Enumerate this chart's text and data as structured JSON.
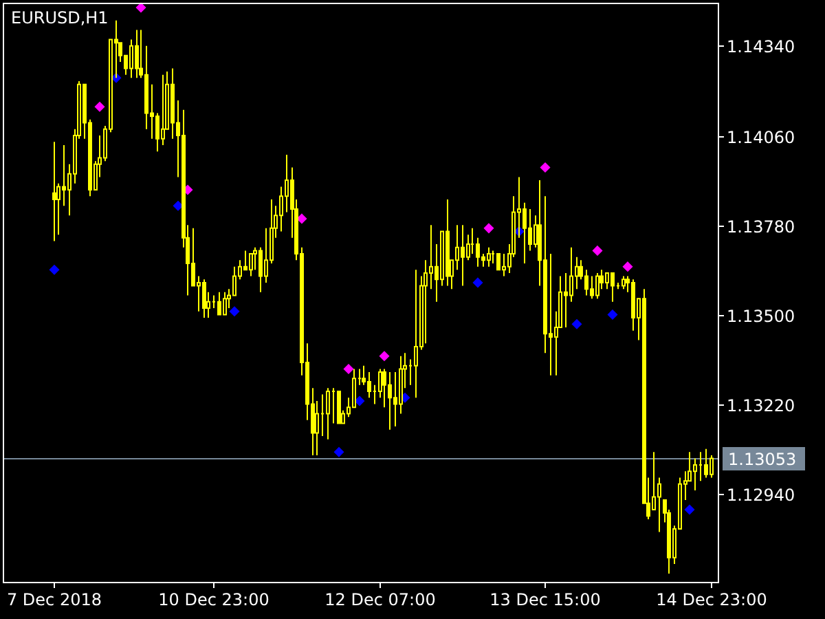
{
  "chart_data": {
    "type": "candlestick",
    "title": "EURUSD,H1",
    "color": "#ffff00",
    "marker": "diamond",
    "categories": [
      "7 Dec 2018",
      null,
      null,
      null,
      null,
      null,
      null,
      null,
      null,
      null,
      null,
      null,
      null,
      null,
      null,
      null,
      null,
      null,
      null,
      null,
      null,
      null,
      null,
      null,
      null,
      null,
      null,
      null,
      null,
      null,
      null,
      "10 Dec 23:00",
      null,
      null,
      null,
      null,
      null,
      null,
      null,
      null,
      null,
      null,
      null,
      null,
      null,
      null,
      null,
      null,
      null,
      null,
      null,
      null,
      null,
      null,
      null,
      null,
      null,
      null,
      null,
      null,
      null,
      null,
      null,
      "12 Dec 07:00",
      null,
      null,
      null,
      null,
      null,
      null,
      null,
      null,
      null,
      null,
      null,
      null,
      null,
      null,
      null,
      null,
      null,
      null,
      null,
      null,
      null,
      null,
      null,
      null,
      null,
      null,
      null,
      null,
      null,
      null,
      null,
      "13 Dec 15:00",
      null,
      null,
      null,
      null,
      null,
      null,
      null,
      null,
      null,
      null,
      null,
      null,
      null,
      null,
      null,
      null,
      null,
      null,
      null,
      null,
      null,
      null,
      null,
      null,
      null,
      null,
      null,
      null,
      null,
      null,
      null,
      "14 Dec 23:00"
    ],
    "ohlc": [
      [
        1.1388,
        1.1404,
        1.1373,
        1.1386
      ],
      [
        1.1386,
        1.1391,
        1.1375,
        1.139
      ],
      [
        1.139,
        1.1403,
        1.1384,
        1.1389
      ],
      [
        1.1389,
        1.1397,
        1.1381,
        1.1394
      ],
      [
        1.1394,
        1.1408,
        1.1391,
        1.1406
      ],
      [
        1.1406,
        1.1423,
        1.1405,
        1.1422
      ],
      [
        1.1422,
        1.1422,
        1.1405,
        1.141
      ],
      [
        1.141,
        1.1411,
        1.1387,
        1.1389
      ],
      [
        1.1389,
        1.1398,
        1.1389,
        1.1397
      ],
      [
        1.1397,
        1.1406,
        1.1393,
        1.1399
      ],
      [
        1.1399,
        1.1409,
        1.1398,
        1.1408
      ],
      [
        1.1408,
        1.1436,
        1.1407,
        1.1436
      ],
      [
        1.1436,
        1.1442,
        1.1424,
        1.1435
      ],
      [
        1.1435,
        1.1435,
        1.1429,
        1.1431
      ],
      [
        1.1431,
        1.1431,
        1.1425,
        1.1427
      ],
      [
        1.1427,
        1.1436,
        1.1424,
        1.1434
      ],
      [
        1.1434,
        1.1439,
        1.1424,
        1.1427
      ],
      [
        1.1427,
        1.1439,
        1.1424,
        1.1425
      ],
      [
        1.1425,
        1.1434,
        1.1408,
        1.1413
      ],
      [
        1.1413,
        1.1422,
        1.1405,
        1.1412
      ],
      [
        1.1412,
        1.1413,
        1.1401,
        1.1405
      ],
      [
        1.1405,
        1.1425,
        1.1403,
        1.1408
      ],
      [
        1.1408,
        1.1426,
        1.1408,
        1.1422
      ],
      [
        1.1422,
        1.1427,
        1.1405,
        1.141
      ],
      [
        1.141,
        1.1417,
        1.1393,
        1.1406
      ],
      [
        1.1406,
        1.1414,
        1.1371,
        1.1374
      ],
      [
        1.1374,
        1.1378,
        1.1356,
        1.1366
      ],
      [
        1.1366,
        1.1377,
        1.1359,
        1.1359
      ],
      [
        1.1359,
        1.1362,
        1.1351,
        1.136
      ],
      [
        1.136,
        1.1361,
        1.1349,
        1.1352
      ],
      [
        1.1352,
        1.1357,
        1.1349,
        1.1354
      ],
      [
        1.1354,
        1.1356,
        1.1352,
        1.1354
      ],
      [
        1.1354,
        1.1357,
        1.135,
        1.135
      ],
      [
        1.135,
        1.1357,
        1.135,
        1.1355
      ],
      [
        1.1355,
        1.1358,
        1.1352,
        1.1356
      ],
      [
        1.1356,
        1.1365,
        1.1356,
        1.1362
      ],
      [
        1.1362,
        1.1367,
        1.1361,
        1.1365
      ],
      [
        1.1365,
        1.137,
        1.1364,
        1.1364
      ],
      [
        1.1364,
        1.1369,
        1.1362,
        1.1369
      ],
      [
        1.1369,
        1.1371,
        1.1364,
        1.137
      ],
      [
        1.137,
        1.1371,
        1.1357,
        1.1362
      ],
      [
        1.1362,
        1.1377,
        1.136,
        1.1367
      ],
      [
        1.1367,
        1.1386,
        1.1366,
        1.1377
      ],
      [
        1.1377,
        1.1384,
        1.1374,
        1.1381
      ],
      [
        1.1381,
        1.139,
        1.1376,
        1.1387
      ],
      [
        1.1387,
        1.14,
        1.1382,
        1.1392
      ],
      [
        1.1392,
        1.1396,
        1.1374,
        1.1383
      ],
      [
        1.1383,
        1.1386,
        1.1367,
        1.1369
      ],
      [
        1.1369,
        1.1371,
        1.1331,
        1.1335
      ],
      [
        1.1335,
        1.1341,
        1.1317,
        1.1322
      ],
      [
        1.1322,
        1.1327,
        1.1306,
        1.1313
      ],
      [
        1.1313,
        1.1323,
        1.1306,
        1.1319
      ],
      [
        1.1319,
        1.1325,
        1.1312,
        1.1319
      ],
      [
        1.1319,
        1.1327,
        1.1311,
        1.1326
      ],
      [
        1.1326,
        1.1327,
        1.1316,
        1.1326
      ],
      [
        1.1326,
        1.1326,
        1.1316,
        1.1316
      ],
      [
        1.1316,
        1.132,
        1.1316,
        1.1319
      ],
      [
        1.1319,
        1.1324,
        1.1318,
        1.1321
      ],
      [
        1.1321,
        1.1333,
        1.1321,
        1.133
      ],
      [
        1.133,
        1.1333,
        1.1328,
        1.133
      ],
      [
        1.133,
        1.1334,
        1.1328,
        1.1329
      ],
      [
        1.1329,
        1.1332,
        1.1324,
        1.1326
      ],
      [
        1.1326,
        1.1328,
        1.1322,
        1.1326
      ],
      [
        1.1326,
        1.1333,
        1.1324,
        1.1332
      ],
      [
        1.1332,
        1.1333,
        1.1321,
        1.1328
      ],
      [
        1.1328,
        1.1332,
        1.1314,
        1.1324
      ],
      [
        1.1324,
        1.1332,
        1.1315,
        1.1322
      ],
      [
        1.1322,
        1.1337,
        1.1319,
        1.1333
      ],
      [
        1.1333,
        1.1338,
        1.1327,
        1.1334
      ],
      [
        1.1334,
        1.1336,
        1.1328,
        1.1334
      ],
      [
        1.1334,
        1.1364,
        1.1324,
        1.134
      ],
      [
        1.134,
        1.1362,
        1.1339,
        1.1359
      ],
      [
        1.1359,
        1.1367,
        1.1341,
        1.1363
      ],
      [
        1.1363,
        1.1378,
        1.1358,
        1.1365
      ],
      [
        1.1365,
        1.1372,
        1.1354,
        1.1361
      ],
      [
        1.1361,
        1.1376,
        1.1359,
        1.1376
      ],
      [
        1.1376,
        1.1386,
        1.1359,
        1.1362
      ],
      [
        1.1362,
        1.1367,
        1.1358,
        1.1367
      ],
      [
        1.1367,
        1.1378,
        1.1364,
        1.1371
      ],
      [
        1.1371,
        1.1378,
        1.1359,
        1.1368
      ],
      [
        1.1368,
        1.1375,
        1.1367,
        1.1372
      ],
      [
        1.1372,
        1.1377,
        1.1369,
        1.1372
      ],
      [
        1.1372,
        1.1374,
        1.1365,
        1.1368
      ],
      [
        1.1368,
        1.1369,
        1.1365,
        1.1367
      ],
      [
        1.1367,
        1.1371,
        1.1365,
        1.1369
      ],
      [
        1.1369,
        1.137,
        1.1366,
        1.1369
      ],
      [
        1.1369,
        1.1369,
        1.1364,
        1.1364
      ],
      [
        1.1364,
        1.1369,
        1.1362,
        1.1365
      ],
      [
        1.1365,
        1.1372,
        1.1363,
        1.1369
      ],
      [
        1.1369,
        1.1387,
        1.1368,
        1.1382
      ],
      [
        1.1382,
        1.1393,
        1.1374,
        1.1383
      ],
      [
        1.1383,
        1.1385,
        1.1366,
        1.1377
      ],
      [
        1.1377,
        1.1383,
        1.137,
        1.1372
      ],
      [
        1.1372,
        1.1381,
        1.1371,
        1.1378
      ],
      [
        1.1378,
        1.1392,
        1.1359,
        1.1367
      ],
      [
        1.1367,
        1.1387,
        1.1338,
        1.1344
      ],
      [
        1.1344,
        1.1369,
        1.1331,
        1.1343
      ],
      [
        1.1343,
        1.1351,
        1.1331,
        1.1346
      ],
      [
        1.1346,
        1.1362,
        1.1346,
        1.1357
      ],
      [
        1.1357,
        1.1363,
        1.1346,
        1.1356
      ],
      [
        1.1356,
        1.1371,
        1.1354,
        1.1362
      ],
      [
        1.1362,
        1.1368,
        1.1358,
        1.1365
      ],
      [
        1.1365,
        1.1367,
        1.1361,
        1.1362
      ],
      [
        1.1362,
        1.1364,
        1.1356,
        1.1358
      ],
      [
        1.1358,
        1.1362,
        1.1355,
        1.1356
      ],
      [
        1.1356,
        1.1363,
        1.1355,
        1.1362
      ],
      [
        1.1362,
        1.1364,
        1.1358,
        1.136
      ],
      [
        1.136,
        1.1363,
        1.1358,
        1.1363
      ],
      [
        1.1363,
        1.1363,
        1.1354,
        1.1359
      ],
      [
        1.1359,
        1.136,
        1.1358,
        1.1359
      ],
      [
        1.1359,
        1.1362,
        1.1358,
        1.1361
      ],
      [
        1.1361,
        1.1362,
        1.1357,
        1.136
      ],
      [
        1.136,
        1.1361,
        1.1345,
        1.1349
      ],
      [
        1.1349,
        1.1355,
        1.1342,
        1.1355
      ],
      [
        1.1355,
        1.1358,
        1.1291,
        1.1291
      ],
      [
        1.1291,
        1.1299,
        1.1286,
        1.1287
      ],
      [
        1.1289,
        1.1307,
        1.1289,
        1.1293
      ],
      [
        1.1293,
        1.1299,
        1.1282,
        1.1297
      ],
      [
        1.1292,
        1.1292,
        1.1285,
        1.1288
      ],
      [
        1.1288,
        1.1289,
        1.1269,
        1.1274
      ],
      [
        1.1274,
        1.1284,
        1.1272,
        1.1283
      ],
      [
        1.1283,
        1.1299,
        1.1283,
        1.1297
      ],
      [
        1.1297,
        1.1301,
        1.1292,
        1.1298
      ],
      [
        1.1298,
        1.1307,
        1.1298,
        1.1301
      ],
      [
        1.1301,
        1.1305,
        1.1295,
        1.1303
      ],
      [
        1.1303,
        1.1307,
        1.1298,
        1.1303
      ],
      [
        1.1303,
        1.1308,
        1.1299,
        1.13
      ],
      [
        1.13,
        1.1306,
        1.1299,
        1.1305
      ]
    ],
    "series": [
      {
        "type": "scatter",
        "color": "#ff00ff",
        "values": [
          null,
          null,
          null,
          null,
          null,
          null,
          null,
          null,
          null,
          1.1415,
          null,
          null,
          null,
          null,
          null,
          null,
          null,
          1.1446,
          null,
          null,
          null,
          null,
          null,
          null,
          null,
          null,
          1.1389,
          null,
          null,
          null,
          null,
          null,
          null,
          null,
          null,
          null,
          null,
          null,
          null,
          null,
          null,
          null,
          null,
          null,
          null,
          null,
          null,
          null,
          1.138,
          null,
          null,
          null,
          null,
          null,
          null,
          null,
          null,
          1.1333,
          null,
          null,
          null,
          null,
          null,
          null,
          1.1337,
          null,
          null,
          null,
          null,
          null,
          null,
          null,
          null,
          null,
          null,
          null,
          null,
          null,
          null,
          null,
          null,
          null,
          null,
          null,
          1.1377,
          null,
          null,
          null,
          null,
          null,
          null,
          null,
          null,
          null,
          null,
          1.1396,
          null,
          null,
          null,
          null,
          null,
          null,
          null,
          null,
          null,
          1.137,
          null,
          null,
          null,
          null,
          null,
          1.1365,
          null,
          null,
          null,
          null,
          null,
          null,
          null,
          null,
          null,
          null,
          null,
          null,
          null,
          null,
          null,
          null
        ]
      },
      {
        "type": "scatter",
        "color": "#0000ff",
        "values": [
          1.1364,
          null,
          null,
          null,
          null,
          null,
          null,
          null,
          null,
          null,
          null,
          null,
          1.1424,
          null,
          null,
          null,
          null,
          null,
          null,
          null,
          null,
          null,
          null,
          null,
          1.1384,
          null,
          null,
          null,
          null,
          null,
          null,
          null,
          null,
          null,
          null,
          1.1351,
          null,
          null,
          null,
          null,
          null,
          null,
          null,
          null,
          null,
          null,
          null,
          null,
          null,
          null,
          null,
          null,
          null,
          null,
          null,
          1.1307,
          null,
          null,
          null,
          1.1323,
          null,
          null,
          null,
          null,
          null,
          null,
          null,
          null,
          1.1324,
          null,
          null,
          null,
          null,
          null,
          null,
          null,
          null,
          null,
          null,
          null,
          null,
          null,
          1.136,
          null,
          null,
          null,
          null,
          null,
          null,
          null,
          1.1376,
          null,
          null,
          null,
          null,
          null,
          null,
          null,
          null,
          null,
          null,
          1.1347,
          null,
          null,
          null,
          null,
          null,
          null,
          1.135,
          null,
          null,
          null,
          null,
          null,
          null,
          null,
          null,
          null,
          null,
          null,
          null,
          null,
          null,
          1.1289,
          null,
          null,
          null,
          null
        ]
      }
    ],
    "ylim": [
      1.12662,
      1.14473
    ],
    "yticks": [
      {
        "value": 1.1294,
        "label": "1.12940"
      },
      {
        "value": 1.1322,
        "label": "1.13220"
      },
      {
        "value": 1.135,
        "label": "1.13500"
      },
      {
        "value": 1.1378,
        "label": "1.13780"
      },
      {
        "value": 1.1406,
        "label": "1.14060"
      },
      {
        "value": 1.1434,
        "label": "1.14340"
      }
    ],
    "ref_lines": [
      {
        "axis": "y",
        "value": 1.13053,
        "label": "1.13053",
        "color": "#778899"
      }
    ]
  }
}
